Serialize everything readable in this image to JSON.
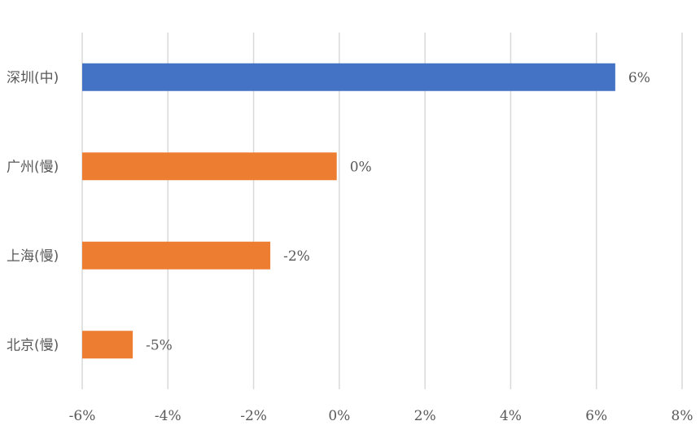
{
  "chart_data": {
    "type": "bar",
    "orientation": "horizontal",
    "title": "",
    "xlabel": "",
    "ylabel": "",
    "categories": [
      "深圳(中)",
      "广州(慢)",
      "上海(慢)",
      "北京(慢)"
    ],
    "values": [
      6.44,
      -0.06,
      -1.61,
      -4.82
    ],
    "data_labels": [
      "6%",
      "0%",
      "-2%",
      "-5%"
    ],
    "bar_colors": [
      "#4472C4",
      "#ED7D31",
      "#ED7D31",
      "#ED7D31"
    ],
    "xlim": [
      -6,
      8
    ],
    "xticks": [
      -6,
      -4,
      -2,
      0,
      2,
      4,
      6,
      8
    ],
    "xtick_labels": [
      "-6%",
      "-4%",
      "-2%",
      "0%",
      "2%",
      "4%",
      "6%",
      "8%"
    ],
    "grid": "vertical",
    "legend": "none",
    "gridline_color": "#D9D9D9"
  }
}
